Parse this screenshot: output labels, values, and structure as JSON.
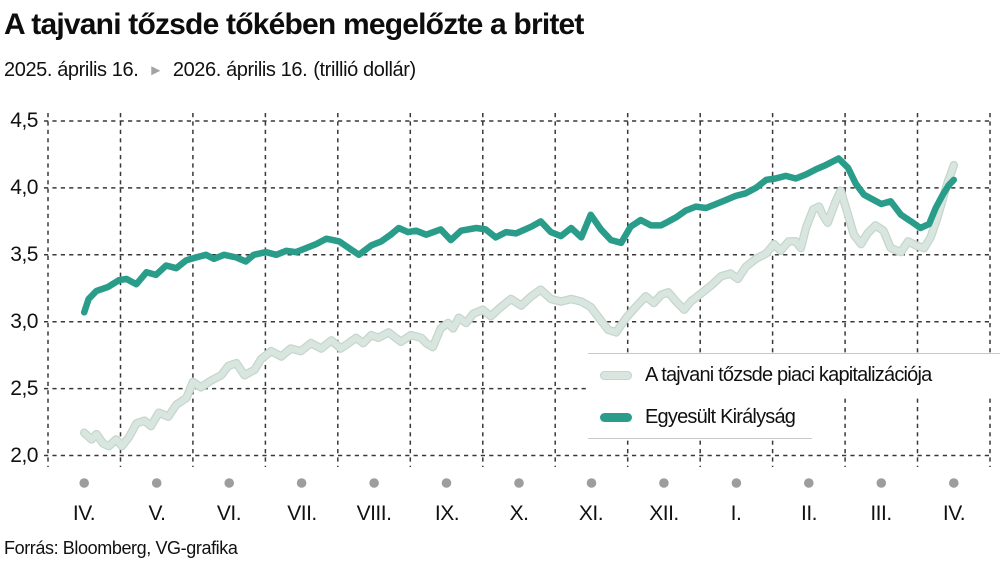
{
  "header": {
    "title": "A tajvani tőzsde tőkében megelőzte a britet",
    "date_from": "2025. április 16.",
    "date_to": "2026. április 16.",
    "unit": "(trillió dollár)",
    "arrow_icon": "►"
  },
  "footer": {
    "source": "Forrás: Bloomberg, VG-grafika"
  },
  "colors": {
    "accent_teal": "#2a9d8a",
    "taiwan_line": "#d9e6e0",
    "taiwan_line_edge": "#c5d6ce",
    "grid": "#383838",
    "axis_dot": "#9d9d9d",
    "legend_border": "#c9c9c9",
    "text": "#111111",
    "arrow_gray": "#a3a3a3"
  },
  "chart_data": {
    "type": "line",
    "title": "A tajvani tőzsde tőkében megelőzte a britet",
    "subtitle": "2025. április 16. ► 2026. április 16. (trillió dollár)",
    "xlabel": "",
    "ylabel": "trillió dollár",
    "grid": "dashed",
    "legend_position": "inside-bottom-right",
    "ylim": [
      2.0,
      4.5
    ],
    "x_tick_labels": [
      "IV.",
      "V.",
      "VI.",
      "VII.",
      "VIII.",
      "IX.",
      "X.",
      "XI.",
      "XII.",
      "I.",
      "II.",
      "III.",
      "IV."
    ],
    "y_ticks": [
      {
        "value": 4.5,
        "label": "4,5"
      },
      {
        "value": 4.0,
        "label": "4,0"
      },
      {
        "value": 3.5,
        "label": "3,5"
      },
      {
        "value": 3.0,
        "label": "3,0"
      },
      {
        "value": 2.5,
        "label": "2,5"
      },
      {
        "value": 2.0,
        "label": "2,0"
      }
    ],
    "series": [
      {
        "name": "A tajvani tőzsde piaci kapitalizációja",
        "color": "#d9e6e0",
        "edge_color": "#c5d6ce",
        "points": [
          [
            0.0,
            2.17
          ],
          [
            0.1,
            2.12
          ],
          [
            0.17,
            2.16
          ],
          [
            0.26,
            2.09
          ],
          [
            0.34,
            2.07
          ],
          [
            0.44,
            2.12
          ],
          [
            0.52,
            2.07
          ],
          [
            0.62,
            2.14
          ],
          [
            0.72,
            2.24
          ],
          [
            0.83,
            2.26
          ],
          [
            0.92,
            2.22
          ],
          [
            1.03,
            2.32
          ],
          [
            1.16,
            2.29
          ],
          [
            1.27,
            2.38
          ],
          [
            1.41,
            2.43
          ],
          [
            1.5,
            2.55
          ],
          [
            1.61,
            2.51
          ],
          [
            1.75,
            2.56
          ],
          [
            1.89,
            2.6
          ],
          [
            1.99,
            2.67
          ],
          [
            2.1,
            2.69
          ],
          [
            2.21,
            2.6
          ],
          [
            2.35,
            2.64
          ],
          [
            2.44,
            2.72
          ],
          [
            2.58,
            2.78
          ],
          [
            2.72,
            2.74
          ],
          [
            2.85,
            2.8
          ],
          [
            2.99,
            2.78
          ],
          [
            3.13,
            2.84
          ],
          [
            3.27,
            2.8
          ],
          [
            3.41,
            2.86
          ],
          [
            3.54,
            2.8
          ],
          [
            3.65,
            2.84
          ],
          [
            3.75,
            2.88
          ],
          [
            3.85,
            2.84
          ],
          [
            3.96,
            2.9
          ],
          [
            4.06,
            2.88
          ],
          [
            4.2,
            2.92
          ],
          [
            4.37,
            2.85
          ],
          [
            4.51,
            2.9
          ],
          [
            4.65,
            2.88
          ],
          [
            4.72,
            2.84
          ],
          [
            4.81,
            2.81
          ],
          [
            4.92,
            2.95
          ],
          [
            5.02,
            2.99
          ],
          [
            5.09,
            2.95
          ],
          [
            5.17,
            3.03
          ],
          [
            5.27,
            2.99
          ],
          [
            5.37,
            3.06
          ],
          [
            5.5,
            3.09
          ],
          [
            5.61,
            3.04
          ],
          [
            5.75,
            3.11
          ],
          [
            5.89,
            3.17
          ],
          [
            6.03,
            3.12
          ],
          [
            6.17,
            3.19
          ],
          [
            6.3,
            3.24
          ],
          [
            6.44,
            3.17
          ],
          [
            6.58,
            3.15
          ],
          [
            6.72,
            3.17
          ],
          [
            6.86,
            3.15
          ],
          [
            6.99,
            3.11
          ],
          [
            7.13,
            3.01
          ],
          [
            7.23,
            2.94
          ],
          [
            7.34,
            2.92
          ],
          [
            7.48,
            3.03
          ],
          [
            7.61,
            3.11
          ],
          [
            7.75,
            3.19
          ],
          [
            7.86,
            3.14
          ],
          [
            7.96,
            3.2
          ],
          [
            8.06,
            3.22
          ],
          [
            8.17,
            3.15
          ],
          [
            8.28,
            3.09
          ],
          [
            8.37,
            3.15
          ],
          [
            8.51,
            3.21
          ],
          [
            8.65,
            3.27
          ],
          [
            8.79,
            3.34
          ],
          [
            8.92,
            3.36
          ],
          [
            9.02,
            3.32
          ],
          [
            9.13,
            3.41
          ],
          [
            9.27,
            3.47
          ],
          [
            9.41,
            3.51
          ],
          [
            9.52,
            3.58
          ],
          [
            9.61,
            3.53
          ],
          [
            9.72,
            3.6
          ],
          [
            9.82,
            3.6
          ],
          [
            9.89,
            3.55
          ],
          [
            9.96,
            3.7
          ],
          [
            10.06,
            3.84
          ],
          [
            10.14,
            3.86
          ],
          [
            10.19,
            3.8
          ],
          [
            10.26,
            3.74
          ],
          [
            10.37,
            3.9
          ],
          [
            10.44,
            3.98
          ],
          [
            10.54,
            3.8
          ],
          [
            10.62,
            3.65
          ],
          [
            10.72,
            3.58
          ],
          [
            10.81,
            3.66
          ],
          [
            10.92,
            3.72
          ],
          [
            11.03,
            3.68
          ],
          [
            11.13,
            3.55
          ],
          [
            11.27,
            3.52
          ],
          [
            11.37,
            3.6
          ],
          [
            11.48,
            3.57
          ],
          [
            11.59,
            3.55
          ],
          [
            11.68,
            3.63
          ],
          [
            11.77,
            3.77
          ],
          [
            11.85,
            3.92
          ],
          [
            11.92,
            4.05
          ],
          [
            11.97,
            4.12
          ],
          [
            12.0,
            4.17
          ]
        ]
      },
      {
        "name": "Egyesült Királyság",
        "color": "#2a9d8a",
        "points": [
          [
            0.0,
            3.07
          ],
          [
            0.06,
            3.17
          ],
          [
            0.17,
            3.23
          ],
          [
            0.33,
            3.26
          ],
          [
            0.48,
            3.31
          ],
          [
            0.58,
            3.32
          ],
          [
            0.72,
            3.28
          ],
          [
            0.86,
            3.37
          ],
          [
            0.99,
            3.35
          ],
          [
            1.13,
            3.42
          ],
          [
            1.27,
            3.4
          ],
          [
            1.41,
            3.46
          ],
          [
            1.54,
            3.48
          ],
          [
            1.68,
            3.5
          ],
          [
            1.79,
            3.47
          ],
          [
            1.93,
            3.5
          ],
          [
            2.1,
            3.48
          ],
          [
            2.23,
            3.45
          ],
          [
            2.34,
            3.5
          ],
          [
            2.51,
            3.52
          ],
          [
            2.65,
            3.5
          ],
          [
            2.79,
            3.53
          ],
          [
            2.92,
            3.52
          ],
          [
            3.06,
            3.55
          ],
          [
            3.2,
            3.58
          ],
          [
            3.34,
            3.62
          ],
          [
            3.52,
            3.6
          ],
          [
            3.68,
            3.54
          ],
          [
            3.79,
            3.5
          ],
          [
            3.96,
            3.57
          ],
          [
            4.1,
            3.6
          ],
          [
            4.23,
            3.65
          ],
          [
            4.34,
            3.7
          ],
          [
            4.47,
            3.67
          ],
          [
            4.58,
            3.68
          ],
          [
            4.72,
            3.65
          ],
          [
            4.92,
            3.69
          ],
          [
            5.06,
            3.61
          ],
          [
            5.2,
            3.68
          ],
          [
            5.41,
            3.7
          ],
          [
            5.54,
            3.69
          ],
          [
            5.68,
            3.63
          ],
          [
            5.82,
            3.67
          ],
          [
            5.96,
            3.66
          ],
          [
            6.17,
            3.71
          ],
          [
            6.3,
            3.75
          ],
          [
            6.44,
            3.67
          ],
          [
            6.58,
            3.64
          ],
          [
            6.72,
            3.7
          ],
          [
            6.86,
            3.63
          ],
          [
            6.99,
            3.8
          ],
          [
            7.13,
            3.69
          ],
          [
            7.27,
            3.61
          ],
          [
            7.41,
            3.59
          ],
          [
            7.54,
            3.71
          ],
          [
            7.68,
            3.76
          ],
          [
            7.82,
            3.72
          ],
          [
            7.96,
            3.72
          ],
          [
            8.03,
            3.74
          ],
          [
            8.17,
            3.78
          ],
          [
            8.3,
            3.83
          ],
          [
            8.44,
            3.86
          ],
          [
            8.58,
            3.85
          ],
          [
            8.72,
            3.88
          ],
          [
            8.86,
            3.91
          ],
          [
            8.99,
            3.94
          ],
          [
            9.13,
            3.96
          ],
          [
            9.27,
            4.0
          ],
          [
            9.41,
            4.06
          ],
          [
            9.54,
            4.07
          ],
          [
            9.68,
            4.09
          ],
          [
            9.82,
            4.07
          ],
          [
            9.96,
            4.1
          ],
          [
            10.1,
            4.14
          ],
          [
            10.23,
            4.17
          ],
          [
            10.41,
            4.22
          ],
          [
            10.54,
            4.15
          ],
          [
            10.65,
            4.03
          ],
          [
            10.76,
            3.95
          ],
          [
            10.86,
            3.92
          ],
          [
            11.0,
            3.88
          ],
          [
            11.13,
            3.9
          ],
          [
            11.27,
            3.8
          ],
          [
            11.41,
            3.75
          ],
          [
            11.54,
            3.7
          ],
          [
            11.66,
            3.73
          ],
          [
            11.75,
            3.85
          ],
          [
            11.85,
            3.95
          ],
          [
            11.93,
            4.02
          ],
          [
            12.0,
            4.06
          ]
        ]
      }
    ]
  }
}
